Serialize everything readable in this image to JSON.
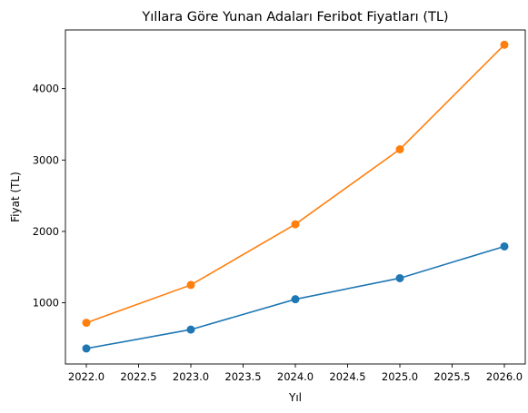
{
  "chart_data": {
    "type": "line",
    "title": "Yıllara Göre Yunan Adaları Feribot Fiyatları (TL)",
    "xlabel": "Yıl",
    "ylabel": "Fiyat (TL)",
    "x": [
      2022,
      2023,
      2024,
      2025,
      2026
    ],
    "xlim": [
      2021.8,
      2026.2
    ],
    "ylim": [
      143,
      4822
    ],
    "xticks": [
      2022.0,
      2022.5,
      2023.0,
      2023.5,
      2024.0,
      2024.5,
      2025.0,
      2025.5,
      2026.0
    ],
    "xtick_labels": [
      "2022.0",
      "2022.5",
      "2023.0",
      "2023.5",
      "2024.0",
      "2024.5",
      "2025.0",
      "2025.5",
      "2026.0"
    ],
    "yticks": [
      1000,
      2000,
      3000,
      4000
    ],
    "ytick_labels": [
      "1000",
      "2000",
      "3000",
      "4000"
    ],
    "grid": false,
    "series": [
      {
        "color": "#1f77b4",
        "values": [
          360,
          625,
          1050,
          1345,
          1790
        ]
      },
      {
        "color": "#ff7f0e",
        "values": [
          720,
          1250,
          2100,
          3150,
          4615
        ]
      }
    ]
  }
}
